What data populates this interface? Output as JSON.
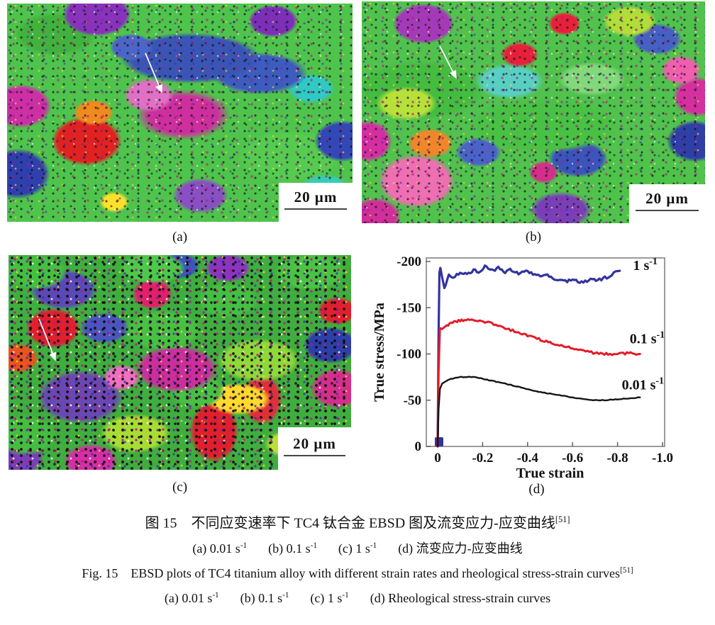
{
  "panels": {
    "a": {
      "label": "(a)",
      "scale_bar": "20 μm"
    },
    "b": {
      "label": "(b)",
      "scale_bar": "20 μm"
    },
    "c": {
      "label": "(c)",
      "scale_bar": "20 μm"
    },
    "d": {
      "label": "(d)"
    }
  },
  "caption": {
    "zh_title": {
      "text": "图 15　不同应变速率下 TC4 钛合金 EBSD 图及流变应力-应变曲线",
      "sup": "[51]"
    },
    "zh_sub": {
      "p1": "(a) 0.01 s",
      "s1": "-1",
      "p2": "(b) 0.1 s",
      "s2": "-1",
      "p3": "(c) 1 s",
      "s3": "-1",
      "p4": "(d) 流变应力-应变曲线"
    },
    "en_title": {
      "text": "Fig. 15　EBSD plots of TC4 titanium alloy with different strain rates and rheological stress-strain curves",
      "sup": "[51]"
    },
    "en_sub": {
      "p1": "(a) 0.01 s",
      "s1": "-1",
      "p2": "(b) 0.1 s",
      "s2": "-1",
      "p3": "(c) 1 s",
      "s3": "-1",
      "p4": "(d) Rheological stress-strain curves"
    }
  },
  "chart_data": {
    "type": "line",
    "title": "",
    "xlabel": "True strain",
    "ylabel": "True stress/MPa",
    "xlim": [
      0,
      -1.0
    ],
    "ylim": [
      0,
      -200
    ],
    "grid": false,
    "legend_position": "inline-right",
    "frame_color": "#828282",
    "x_ticks": [
      0,
      -0.2,
      -0.4,
      -0.6,
      -0.8,
      -1.0
    ],
    "x_tick_labels": [
      "0",
      "-0.2",
      "-0.4",
      "-0.6",
      "-0.8",
      "-1.0"
    ],
    "y_ticks": [
      0,
      -50,
      -100,
      -150,
      -200
    ],
    "y_tick_labels": [
      "0",
      "-50",
      "-100",
      "-150",
      "-200"
    ],
    "series": [
      {
        "name": "1 s-1",
        "label": "1 s",
        "label_sup": "-1",
        "label_at": [
          -0.85,
          -196
        ],
        "color": "#32339e",
        "width": 3.2,
        "noise": 2.2,
        "points": [
          [
            0,
            0
          ],
          [
            -0.004,
            -120
          ],
          [
            -0.008,
            -188
          ],
          [
            -0.012,
            -193
          ],
          [
            -0.02,
            -183
          ],
          [
            -0.03,
            -170
          ],
          [
            -0.05,
            -186
          ],
          [
            -0.07,
            -182
          ],
          [
            -0.1,
            -189
          ],
          [
            -0.13,
            -186
          ],
          [
            -0.16,
            -191
          ],
          [
            -0.19,
            -189
          ],
          [
            -0.21,
            -195
          ],
          [
            -0.24,
            -190
          ],
          [
            -0.27,
            -193
          ],
          [
            -0.3,
            -189
          ],
          [
            -0.33,
            -191
          ],
          [
            -0.36,
            -187
          ],
          [
            -0.4,
            -189
          ],
          [
            -0.44,
            -184
          ],
          [
            -0.48,
            -186
          ],
          [
            -0.52,
            -181
          ],
          [
            -0.56,
            -178
          ],
          [
            -0.6,
            -180
          ],
          [
            -0.64,
            -177
          ],
          [
            -0.68,
            -181
          ],
          [
            -0.72,
            -180
          ],
          [
            -0.76,
            -184
          ],
          [
            -0.79,
            -188
          ],
          [
            -0.81,
            -190
          ]
        ]
      },
      {
        "name": "0.1 s-1",
        "label": "0.1 s",
        "label_sup": "-1",
        "label_at": [
          -0.835,
          -117
        ],
        "color": "#e41b28",
        "width": 3,
        "noise": 1.6,
        "points": [
          [
            0,
            0
          ],
          [
            -0.004,
            -80
          ],
          [
            -0.01,
            -128
          ],
          [
            -0.02,
            -127
          ],
          [
            -0.04,
            -131
          ],
          [
            -0.06,
            -133
          ],
          [
            -0.08,
            -135
          ],
          [
            -0.1,
            -136
          ],
          [
            -0.12,
            -137
          ],
          [
            -0.15,
            -138
          ],
          [
            -0.18,
            -136
          ],
          [
            -0.21,
            -135
          ],
          [
            -0.25,
            -132
          ],
          [
            -0.3,
            -128
          ],
          [
            -0.35,
            -124
          ],
          [
            -0.4,
            -120
          ],
          [
            -0.45,
            -116
          ],
          [
            -0.5,
            -112
          ],
          [
            -0.55,
            -109
          ],
          [
            -0.6,
            -106
          ],
          [
            -0.65,
            -103
          ],
          [
            -0.7,
            -101
          ],
          [
            -0.75,
            -100
          ],
          [
            -0.8,
            -100
          ],
          [
            -0.85,
            -101
          ],
          [
            -0.9,
            -100
          ]
        ]
      },
      {
        "name": "0.01 s-1",
        "label": "0.01 s",
        "label_sup": "-1",
        "label_at": [
          -0.8,
          -67
        ],
        "color": "#141414",
        "width": 2.4,
        "noise": 0.5,
        "points": [
          [
            0,
            0
          ],
          [
            -0.004,
            -40
          ],
          [
            -0.01,
            -62
          ],
          [
            -0.02,
            -68
          ],
          [
            -0.04,
            -71
          ],
          [
            -0.06,
            -73
          ],
          [
            -0.08,
            -74
          ],
          [
            -0.1,
            -75
          ],
          [
            -0.13,
            -75
          ],
          [
            -0.16,
            -75
          ],
          [
            -0.19,
            -74
          ],
          [
            -0.22,
            -72
          ],
          [
            -0.26,
            -70
          ],
          [
            -0.3,
            -68
          ],
          [
            -0.35,
            -65
          ],
          [
            -0.4,
            -62
          ],
          [
            -0.45,
            -59
          ],
          [
            -0.5,
            -57
          ],
          [
            -0.55,
            -55
          ],
          [
            -0.6,
            -53
          ],
          [
            -0.65,
            -51
          ],
          [
            -0.7,
            -50
          ],
          [
            -0.75,
            -50
          ],
          [
            -0.8,
            -51
          ],
          [
            -0.85,
            -52
          ],
          [
            -0.9,
            -53
          ]
        ]
      }
    ]
  }
}
